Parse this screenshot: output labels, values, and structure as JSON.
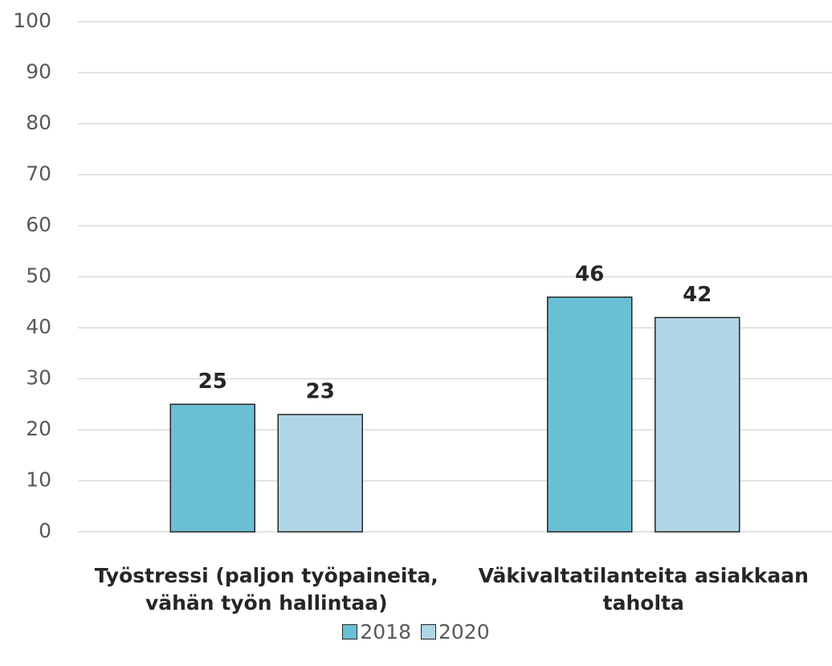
{
  "chart_data": {
    "type": "bar",
    "categories": [
      "Työstressi (paljon työpaineita, vähän työn hallintaa)",
      "Väkivaltatilanteita asiakkaan taholta"
    ],
    "series": [
      {
        "name": "2018",
        "color": "#6bbfd4",
        "values": [
          25,
          46
        ]
      },
      {
        "name": "2020",
        "color": "#aed6e6",
        "values": [
          23,
          42
        ]
      }
    ],
    "ylim": [
      0,
      100
    ],
    "yticks": [
      0,
      10,
      20,
      30,
      40,
      50,
      60,
      70,
      80,
      90,
      100
    ],
    "grid": true,
    "legend": "bottom"
  }
}
